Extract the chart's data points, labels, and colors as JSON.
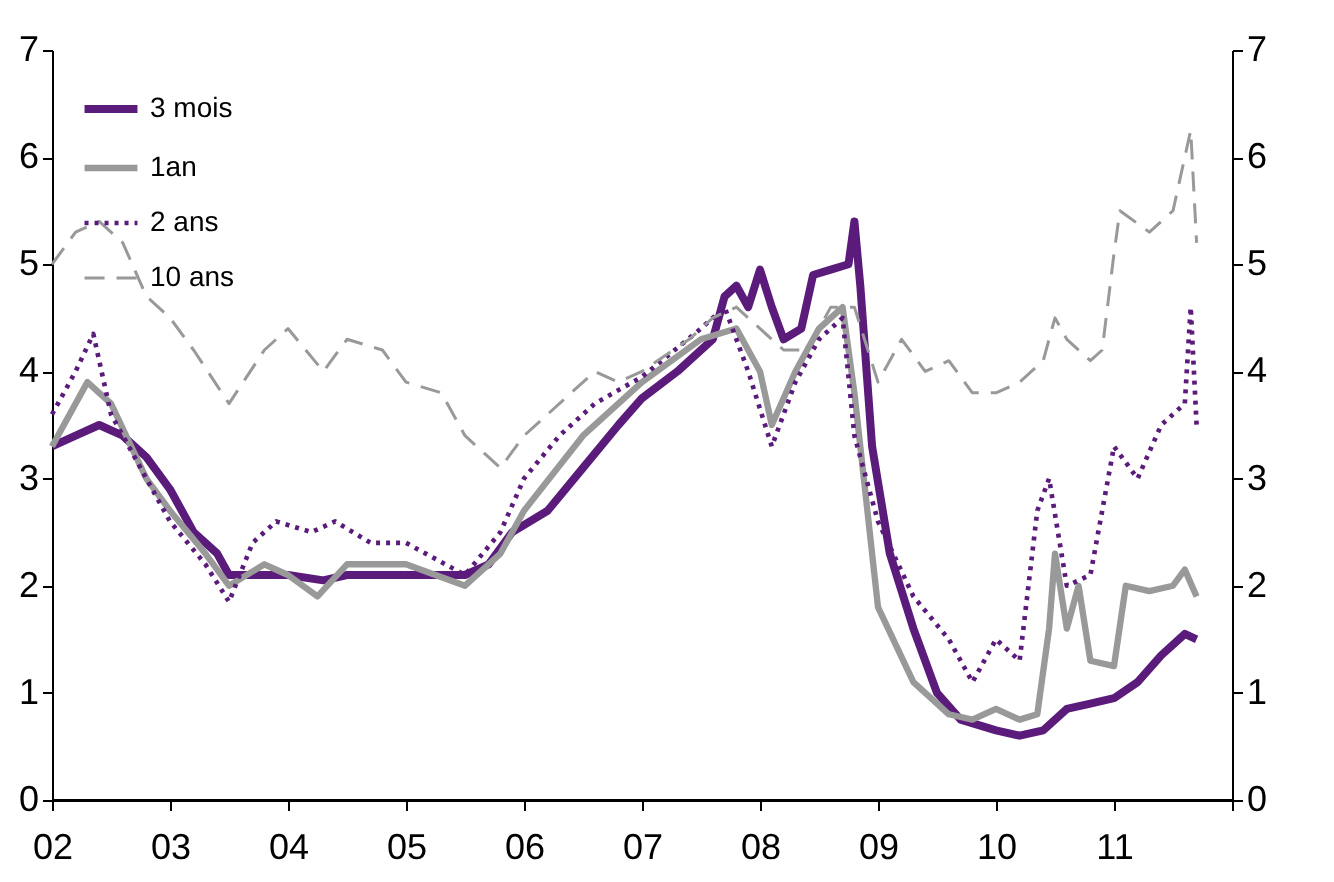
{
  "chart_data": {
    "type": "line",
    "xlim": [
      2002,
      2012
    ],
    "xticks": [
      {
        "value": 2002,
        "label": "02"
      },
      {
        "value": 2003,
        "label": "03"
      },
      {
        "value": 2004,
        "label": "04"
      },
      {
        "value": 2005,
        "label": "05"
      },
      {
        "value": 2006,
        "label": "06"
      },
      {
        "value": 2007,
        "label": "07"
      },
      {
        "value": 2008,
        "label": "08"
      },
      {
        "value": 2009,
        "label": "09"
      },
      {
        "value": 2010,
        "label": "10"
      },
      {
        "value": 2011,
        "label": "11"
      },
      {
        "value": 2012,
        "label": null
      }
    ],
    "ylim": [
      0,
      7
    ],
    "yticks": [
      0,
      1,
      2,
      3,
      4,
      5,
      6,
      7
    ],
    "y2lim": [
      0,
      7
    ],
    "y2ticks": [
      0,
      1,
      2,
      3,
      4,
      5,
      6,
      7
    ],
    "grid": false,
    "legend": "top left",
    "series": [
      {
        "name": "3 mois",
        "color": "#5b1b7b",
        "line_style": "solid",
        "x": [
          2002.0,
          2002.2,
          2002.4,
          2002.6,
          2002.8,
          2003.0,
          2003.2,
          2003.4,
          2003.5,
          2003.7,
          2004.0,
          2004.3,
          2004.5,
          2005.0,
          2005.5,
          2005.7,
          2005.9,
          2006.2,
          2006.5,
          2006.8,
          2007.0,
          2007.3,
          2007.6,
          2007.7,
          2007.8,
          2007.9,
          2008.0,
          2008.1,
          2008.2,
          2008.35,
          2008.45,
          2008.6,
          2008.75,
          2008.8,
          2008.85,
          2008.95,
          2009.1,
          2009.3,
          2009.5,
          2009.7,
          2010.0,
          2010.2,
          2010.4,
          2010.6,
          2010.8,
          2011.0,
          2011.2,
          2011.4,
          2011.6,
          2011.7
        ],
        "values": [
          3.3,
          3.4,
          3.5,
          3.4,
          3.2,
          2.9,
          2.5,
          2.3,
          2.1,
          2.1,
          2.1,
          2.05,
          2.1,
          2.1,
          2.1,
          2.2,
          2.5,
          2.7,
          3.1,
          3.5,
          3.75,
          4.0,
          4.3,
          4.7,
          4.8,
          4.6,
          4.95,
          4.6,
          4.3,
          4.4,
          4.9,
          4.95,
          5.0,
          5.4,
          4.8,
          3.3,
          2.3,
          1.6,
          1.0,
          0.75,
          0.65,
          0.6,
          0.65,
          0.85,
          0.9,
          0.95,
          1.1,
          1.35,
          1.55,
          1.5
        ]
      },
      {
        "name": "1an",
        "color": "#999999",
        "line_style": "solid",
        "x": [
          2002.0,
          2002.3,
          2002.5,
          2002.8,
          2003.0,
          2003.3,
          2003.5,
          2003.8,
          2004.0,
          2004.25,
          2004.5,
          2005.0,
          2005.5,
          2005.8,
          2006.0,
          2006.5,
          2007.0,
          2007.5,
          2007.8,
          2008.0,
          2008.1,
          2008.3,
          2008.5,
          2008.7,
          2008.8,
          2008.9,
          2009.0,
          2009.3,
          2009.6,
          2009.8,
          2010.0,
          2010.2,
          2010.35,
          2010.45,
          2010.5,
          2010.6,
          2010.7,
          2010.8,
          2011.0,
          2011.1,
          2011.3,
          2011.5,
          2011.6,
          2011.7
        ],
        "values": [
          3.3,
          3.9,
          3.7,
          3.0,
          2.7,
          2.3,
          2.0,
          2.2,
          2.1,
          1.9,
          2.2,
          2.2,
          2.0,
          2.3,
          2.7,
          3.4,
          3.9,
          4.3,
          4.4,
          4.0,
          3.5,
          4.0,
          4.4,
          4.6,
          3.8,
          2.8,
          1.8,
          1.1,
          0.8,
          0.75,
          0.85,
          0.75,
          0.8,
          1.6,
          2.3,
          1.6,
          2.0,
          1.3,
          1.25,
          2.0,
          1.95,
          2.0,
          2.15,
          1.9
        ]
      },
      {
        "name": "2 ans",
        "color": "#5b1b7b",
        "line_style": "dotted",
        "x": [
          2002.0,
          2002.2,
          2002.35,
          2002.5,
          2002.8,
          2003.0,
          2003.3,
          2003.5,
          2003.7,
          2003.9,
          2004.2,
          2004.4,
          2004.7,
          2005.0,
          2005.5,
          2005.8,
          2006.0,
          2006.3,
          2006.6,
          2007.0,
          2007.5,
          2007.7,
          2007.9,
          2008.1,
          2008.3,
          2008.5,
          2008.7,
          2008.8,
          2009.0,
          2009.3,
          2009.6,
          2009.8,
          2010.0,
          2010.2,
          2010.35,
          2010.45,
          2010.6,
          2010.8,
          2011.0,
          2011.2,
          2011.4,
          2011.6,
          2011.65,
          2011.7
        ],
        "values": [
          3.6,
          4.0,
          4.35,
          3.6,
          3.0,
          2.6,
          2.2,
          1.85,
          2.4,
          2.6,
          2.5,
          2.6,
          2.4,
          2.4,
          2.1,
          2.5,
          3.0,
          3.4,
          3.7,
          3.95,
          4.4,
          4.6,
          4.0,
          3.3,
          3.9,
          4.3,
          4.5,
          3.4,
          2.6,
          1.9,
          1.5,
          1.1,
          1.5,
          1.3,
          2.7,
          3.0,
          2.0,
          2.1,
          3.3,
          3.0,
          3.5,
          3.7,
          4.6,
          3.5
        ]
      },
      {
        "name": "10 ans",
        "color": "#999999",
        "line_style": "dashed",
        "x": [
          2002.0,
          2002.2,
          2002.4,
          2002.6,
          2002.8,
          2003.0,
          2003.2,
          2003.5,
          2003.8,
          2004.0,
          2004.3,
          2004.5,
          2004.8,
          2005.0,
          2005.3,
          2005.5,
          2005.8,
          2006.0,
          2006.3,
          2006.6,
          2006.8,
          2007.0,
          2007.4,
          2007.6,
          2007.8,
          2008.0,
          2008.2,
          2008.4,
          2008.6,
          2008.8,
          2009.0,
          2009.2,
          2009.4,
          2009.6,
          2009.8,
          2010.0,
          2010.2,
          2010.4,
          2010.5,
          2010.6,
          2010.8,
          2010.9,
          2011.0,
          2011.05,
          2011.3,
          2011.5,
          2011.65,
          2011.7
        ],
        "values": [
          5.0,
          5.3,
          5.4,
          5.2,
          4.7,
          4.5,
          4.2,
          3.7,
          4.2,
          4.4,
          4.0,
          4.3,
          4.2,
          3.9,
          3.8,
          3.4,
          3.1,
          3.4,
          3.7,
          4.0,
          3.9,
          4.0,
          4.3,
          4.5,
          4.6,
          4.4,
          4.2,
          4.2,
          4.6,
          4.6,
          3.9,
          4.3,
          4.0,
          4.1,
          3.8,
          3.8,
          3.9,
          4.1,
          4.5,
          4.3,
          4.1,
          4.2,
          5.1,
          5.5,
          5.3,
          5.5,
          6.25,
          5.2
        ]
      }
    ]
  }
}
